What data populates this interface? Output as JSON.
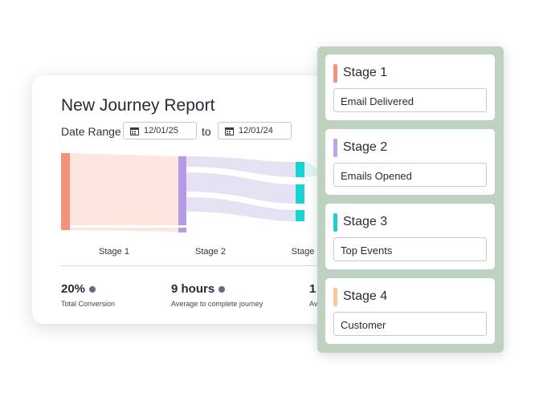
{
  "report": {
    "title": "New Journey Report",
    "date_range_label": "Date Range",
    "date_from": "12/01/25",
    "to_label": "to",
    "date_to": "12/01/24",
    "stage_labels": [
      "Stage 1",
      "Stage 2",
      "Stage"
    ],
    "stats": [
      {
        "value": "20%",
        "caption": "Total Conversion"
      },
      {
        "value": "9 hours",
        "caption": "Average to complete journey"
      },
      {
        "value": "1",
        "caption": "Av"
      }
    ]
  },
  "stages": [
    {
      "name": "Stage 1",
      "value": "Email Delivered",
      "color": "#f2917c"
    },
    {
      "name": "Stage 2",
      "value": "Emails Opened",
      "color": "#b7a9e6"
    },
    {
      "name": "Stage 3",
      "value": "Top Events",
      "color": "#1fcfcf"
    },
    {
      "name": "Stage 4",
      "value": "Customer",
      "color": "#f6c89a"
    }
  ],
  "colors": {
    "stage1": "#f2917c",
    "stage1_flow": "#fde6df",
    "stage2": "#b59ae8",
    "stage2_flow": "#e5e2f4",
    "stage3": "#19d3d3",
    "stat_dot": "#5d6e85",
    "panel_bg": "#bfd2c1"
  }
}
